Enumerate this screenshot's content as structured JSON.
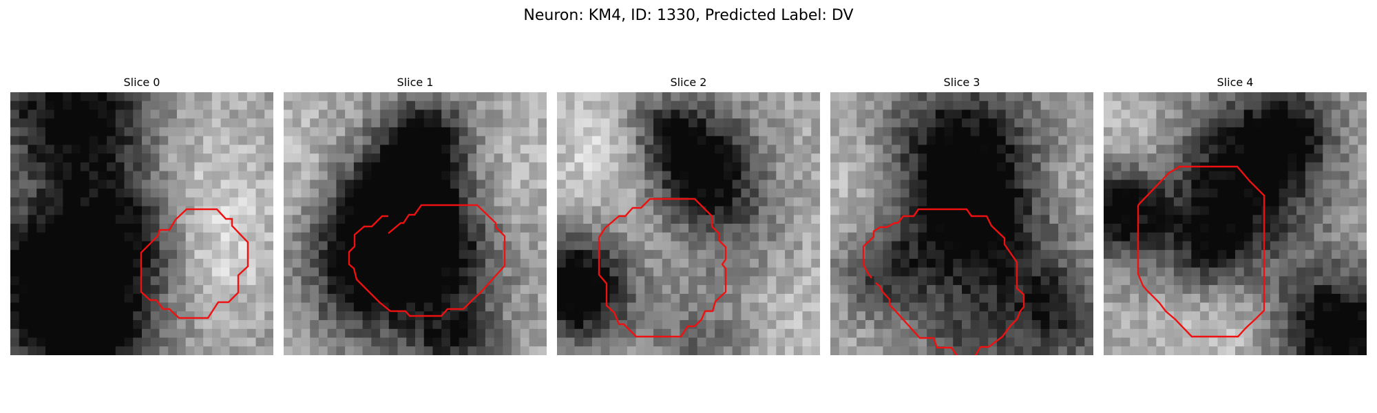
{
  "title": "Neuron: KM4, ID: 1330, Predicted Label: DV",
  "colors": {
    "contour": "#ee1111",
    "colormap": "grayscale"
  },
  "panels": [
    {
      "title": "Slice 0"
    },
    {
      "title": "Slice 1"
    },
    {
      "title": "Slice 2"
    },
    {
      "title": "Slice 3"
    },
    {
      "title": "Slice 4"
    }
  ]
}
